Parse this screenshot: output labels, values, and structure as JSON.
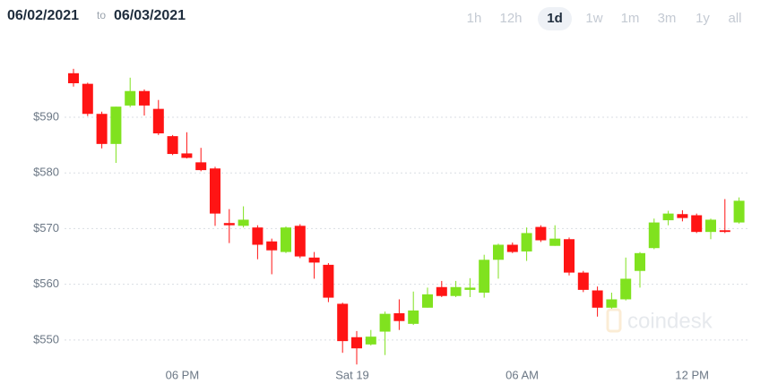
{
  "header": {
    "from": "06/02/2021",
    "sep": "to",
    "to": "06/03/2021",
    "ranges": [
      "1h",
      "12h",
      "1d",
      "1w",
      "1m",
      "3m",
      "1y",
      "all"
    ],
    "selected": "1d"
  },
  "watermark": "coindesk",
  "chart_data": {
    "type": "candlestick",
    "categories": [
      null,
      null,
      null,
      null,
      null,
      null,
      null,
      null,
      "06 PM",
      null,
      null,
      null,
      null,
      null,
      null,
      null,
      null,
      null,
      null,
      null,
      "Sat 19",
      null,
      null,
      null,
      null,
      null,
      null,
      null,
      null,
      null,
      null,
      null,
      "06 AM",
      null,
      null,
      null,
      null,
      null,
      null,
      null,
      null,
      null,
      null,
      null,
      "12 PM",
      null,
      null,
      null
    ],
    "open": [
      597.9,
      596.0,
      590.6,
      585.2,
      592.1,
      594.7,
      591.5,
      586.6,
      583.5,
      581.9,
      580.8,
      571.0,
      570.5,
      570.2,
      567.7,
      565.8,
      570.5,
      564.8,
      563.5,
      556.5,
      550.5,
      549.2,
      551.5,
      554.8,
      552.9,
      555.8,
      559.5,
      557.9,
      559.0,
      558.5,
      564.4,
      567.1,
      565.9,
      570.3,
      566.9,
      568.1,
      562.1,
      558.9,
      555.8,
      557.3,
      562.4,
      566.5,
      571.5,
      572.6,
      572.4,
      569.4,
      569.7,
      571.1
    ],
    "high": [
      598.7,
      596.2,
      591.0,
      591.9,
      597.1,
      595.0,
      593.1,
      586.8,
      587.3,
      584.5,
      581.1,
      573.5,
      574.0,
      570.6,
      568.2,
      570.4,
      570.8,
      565.8,
      563.8,
      556.7,
      551.6,
      551.8,
      555.1,
      557.3,
      558.7,
      559.4,
      560.6,
      560.6,
      561.1,
      565.3,
      567.3,
      567.5,
      570.2,
      570.6,
      570.6,
      568.4,
      562.4,
      559.6,
      558.5,
      564.8,
      565.8,
      571.8,
      573.2,
      573.3,
      572.7,
      571.8,
      575.3,
      575.6
    ],
    "low": [
      595.5,
      590.2,
      584.4,
      581.8,
      591.8,
      590.3,
      586.8,
      583.2,
      582.6,
      580.3,
      570.5,
      567.4,
      570.2,
      564.5,
      561.8,
      565.6,
      564.7,
      561.0,
      556.8,
      547.7,
      545.6,
      549.0,
      547.3,
      551.8,
      552.7,
      555.8,
      557.7,
      557.7,
      557.7,
      557.6,
      561.0,
      565.6,
      564.2,
      567.6,
      566.9,
      561.6,
      558.6,
      554.2,
      555.6,
      557.1,
      559.4,
      566.3,
      570.6,
      571.3,
      569.2,
      568.1,
      569.2,
      570.9
    ],
    "close": [
      596.1,
      590.6,
      585.2,
      591.9,
      594.7,
      592.1,
      587.1,
      583.4,
      582.7,
      580.5,
      572.7,
      570.6,
      571.6,
      567.1,
      566.1,
      570.2,
      565.0,
      563.9,
      557.6,
      549.8,
      548.5,
      550.6,
      554.7,
      553.4,
      555.3,
      558.2,
      557.9,
      559.5,
      559.4,
      564.4,
      567.1,
      565.8,
      569.2,
      567.9,
      568.2,
      562.1,
      559.0,
      555.8,
      557.3,
      561.0,
      565.6,
      571.1,
      572.7,
      571.9,
      569.4,
      571.6,
      569.4,
      575.0
    ],
    "up_color": "#80e21f",
    "down_color": "#ff1414",
    "ylim": [
      545,
      602
    ],
    "yticks": [
      {
        "value": 550,
        "label": "$550"
      },
      {
        "value": 560,
        "label": "$560"
      },
      {
        "value": 570,
        "label": "$570"
      },
      {
        "value": 580,
        "label": "$580"
      },
      {
        "value": 590,
        "label": "$590"
      }
    ],
    "grid": true
  }
}
